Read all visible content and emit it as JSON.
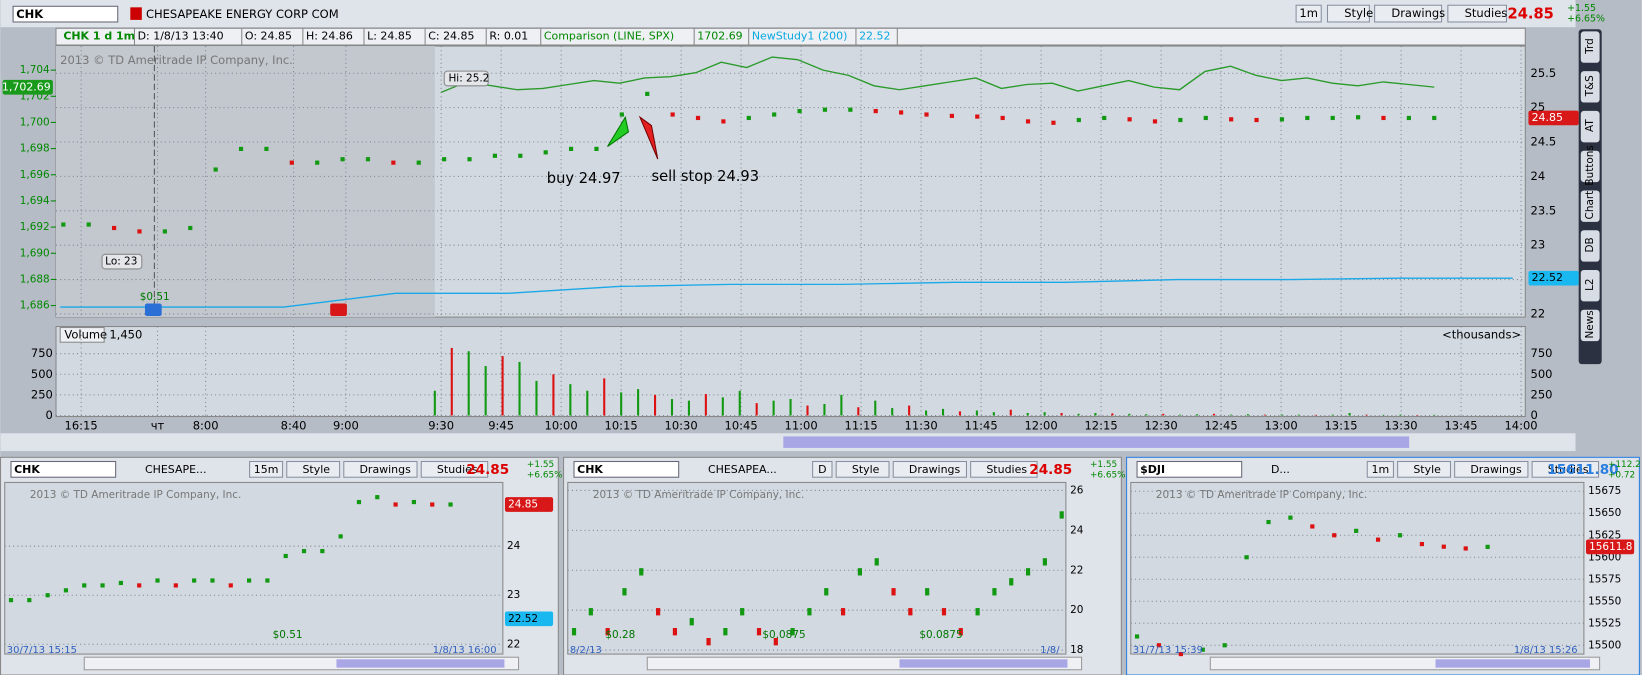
{
  "main": {
    "symbol": "CHK",
    "company": "CHESAPEAKE ENERGY CORP COM",
    "buttons": [
      "1m",
      "Style",
      "Drawings",
      "Studies"
    ],
    "last": "24.85",
    "change": "+1.55",
    "change_pct": "+6.65%",
    "info": [
      "CHK 1 d 1m",
      "D: 1/8/13 13:40",
      "O: 24.85",
      "H: 24.86",
      "L: 24.85",
      "C: 24.85",
      "R: 0.01",
      "Comparison (LINE, SPX)",
      "1702.69",
      "NewStudy1 (200)",
      "22.52"
    ],
    "watermark": "2013 © TD Ameritrade IP Company, Inc.",
    "annotations": {
      "high": "Hi: 25.2",
      "low": "Lo: 23",
      "buy": "buy 24.97",
      "sell": "sell stop 24.93",
      "dividend": "$0.51"
    },
    "price_ticks": [
      25.5,
      25,
      24.5,
      24,
      23.5,
      23,
      22.5,
      22
    ],
    "comparison_ticks": [
      {
        "value": 1704,
        "label": "1,704"
      },
      {
        "value": 1702,
        "label": "1,702"
      },
      {
        "value": 1700,
        "label": "1,700"
      },
      {
        "value": 1698,
        "label": "1,698"
      },
      {
        "value": 1696,
        "label": "1,696"
      },
      {
        "value": 1694,
        "label": "1,694"
      },
      {
        "value": 1692,
        "label": "1,692"
      },
      {
        "value": 1690,
        "label": "1,690"
      },
      {
        "value": 1688,
        "label": "1,688"
      },
      {
        "value": 1686,
        "label": "1,686"
      }
    ],
    "price_flag": 24.85,
    "study_flag": 22.52,
    "comparison_flag": {
      "value": 1702.69,
      "label": "1,702.69"
    },
    "time_labels": [
      "16:15",
      "чт",
      "8:00",
      "8:40",
      "9:00",
      "9:30",
      "9:45",
      "10:00",
      "10:15",
      "10:30",
      "10:45",
      "11:00",
      "11:15",
      "11:30",
      "11:45",
      "12:00",
      "12:15",
      "12:30",
      "12:45",
      "13:00",
      "13:15",
      "13:30",
      "13:45",
      "14:00"
    ],
    "price": [
      23.3,
      23.3,
      23.25,
      23.2,
      23.2,
      23.25,
      24.1,
      24.4,
      24.4,
      24.2,
      24.2,
      24.25,
      24.25,
      24.2,
      24.2,
      24.25,
      24.25,
      24.3,
      24.3,
      24.35,
      24.4,
      24.4,
      24.9,
      25.2,
      24.9,
      24.85,
      24.8,
      24.85,
      24.9,
      24.95,
      24.97,
      24.97,
      24.95,
      24.93,
      24.9,
      24.88,
      24.87,
      24.85,
      24.8,
      24.78,
      24.82,
      24.85,
      24.83,
      24.8,
      24.82,
      24.85,
      24.83,
      24.82,
      24.83,
      24.85,
      24.85,
      24.86,
      24.85,
      24.85,
      24.85
    ],
    "comparison": [
      1702.3,
      1703.1,
      1702.8,
      1702.5,
      1702.6,
      1702.9,
      1703.2,
      1703,
      1703.4,
      1703.5,
      1703.8,
      1704.6,
      1704.2,
      1705,
      1704.8,
      1704,
      1703.6,
      1702.8,
      1702.5,
      1702.8,
      1703.1,
      1703.4,
      1702.6,
      1702.9,
      1703,
      1702.4,
      1702.8,
      1703.2,
      1702.7,
      1702.5,
      1703.9,
      1704.3,
      1703.6,
      1703.2,
      1703.4,
      1703,
      1702.8,
      1703.1,
      1702.9,
      1702.7
    ],
    "study": [
      22.1,
      22.1,
      22.1,
      22.3,
      22.3,
      22.4,
      22.43,
      22.43,
      22.46,
      22.46,
      22.5,
      22.5,
      22.52,
      22.52
    ],
    "volume": {
      "label": "Volume",
      "value": "1,450",
      "units": "<thousands>",
      "ticks": [
        750,
        500,
        250,
        0
      ],
      "values": [
        300,
        820,
        780,
        600,
        720,
        650,
        420,
        500,
        380,
        300,
        450,
        280,
        320,
        250,
        200,
        180,
        260,
        220,
        300,
        150,
        180,
        200,
        120,
        140,
        250,
        100,
        180,
        90,
        120,
        60,
        80,
        50,
        60,
        40,
        70,
        30,
        40,
        30,
        20,
        30,
        25,
        20,
        15,
        20,
        10,
        15,
        20,
        10,
        15,
        10,
        12,
        10,
        8,
        10,
        30,
        10,
        8,
        10,
        6,
        8
      ]
    }
  },
  "side_tabs": [
    "Trd",
    "T&S",
    "AT",
    "Buttons",
    "Chart",
    "DB",
    "L2",
    "News"
  ],
  "panels": [
    {
      "symbol": "CHK",
      "company": "CHESAPE...",
      "buttons": [
        "15m",
        "Style",
        "Drawings",
        "Studies"
      ],
      "last": "24.85",
      "change": "+1.55",
      "change_pct": "+6.65%",
      "watermark": "2013 © TD Ameritrade IP Company, Inc.",
      "ticks": [
        24,
        23,
        22
      ],
      "ylim": [
        21.8,
        25.3
      ],
      "flags": [
        24.85,
        22.52
      ],
      "notes": [
        "$0.51"
      ],
      "dates": [
        "30/7/13 15:15",
        "1/8/13 16:00"
      ],
      "values": [
        22.9,
        22.9,
        23,
        23.1,
        23.2,
        23.2,
        23.25,
        23.2,
        23.3,
        23.2,
        23.3,
        23.3,
        23.2,
        23.3,
        23.3,
        23.8,
        23.9,
        23.9,
        24.2,
        24.9,
        25,
        24.85,
        24.9,
        24.85,
        24.85
      ]
    },
    {
      "symbol": "CHK",
      "company": "CHESAPEA...",
      "buttons": [
        "D",
        "Style",
        "Drawings",
        "Studies"
      ],
      "last": "24.85",
      "change": "+1.55",
      "change_pct": "+6.65%",
      "watermark": "2013 © TD Ameritrade IP Company, Inc.",
      "ticks": [
        26,
        24,
        22,
        20,
        18
      ],
      "ylim": [
        17.8,
        26.4
      ],
      "flags": [],
      "notes": [
        "$0.28",
        "$0.0875",
        "$0.0875"
      ],
      "dates": [
        "8/2/13",
        "1/8/"
      ],
      "values": [
        19,
        20,
        19,
        21,
        22,
        20,
        19,
        19.5,
        18.5,
        19,
        20,
        19,
        18.5,
        19,
        20,
        21,
        20,
        22,
        22.5,
        21,
        20,
        21,
        20,
        19,
        20,
        21,
        21.5,
        22,
        22.5,
        24.85
      ]
    },
    {
      "symbol": "$DJI",
      "company": "D...",
      "buttons": [
        "1m",
        "Style",
        "Drawings",
        "Studies"
      ],
      "last": "15611.80",
      "change": "+112.2",
      "change_pct": "+0.72",
      "watermark": "2013 © TD Ameritrade IP Company, Inc.",
      "ticks": [
        15675,
        15650,
        15625,
        15600,
        15575,
        15550,
        15525,
        15500
      ],
      "ylim": [
        15490,
        15685
      ],
      "flags": [
        15611.8
      ],
      "notes": [],
      "dates": [
        "31/7/13 15:39",
        "1/8/13 15:26"
      ],
      "values": [
        15510,
        15500,
        15490,
        15495,
        15500,
        15600,
        15640,
        15645,
        15635,
        15625,
        15630,
        15620,
        15625,
        15615,
        15612,
        15610,
        15611.8
      ]
    }
  ]
}
